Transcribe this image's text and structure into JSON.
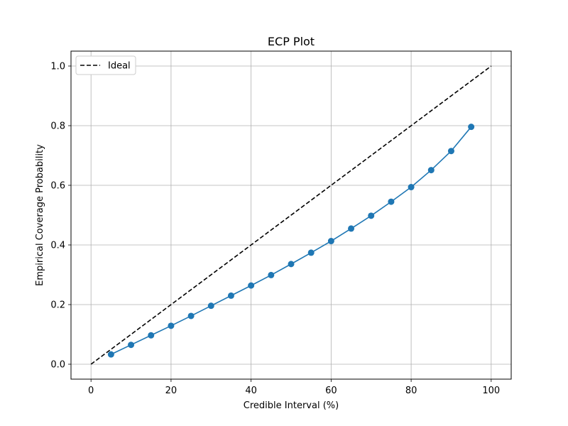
{
  "chart_data": {
    "type": "line",
    "title": "ECP Plot",
    "xlabel": "Credible Interval (%)",
    "ylabel": "Empirical Coverage Probability",
    "xlim": [
      -5,
      105
    ],
    "ylim": [
      -0.05,
      1.05
    ],
    "xticks": [
      0,
      20,
      40,
      60,
      80,
      100
    ],
    "yticks": [
      0.0,
      0.2,
      0.4,
      0.6,
      0.8,
      1.0
    ],
    "xtick_labels": [
      "0",
      "20",
      "40",
      "60",
      "80",
      "100"
    ],
    "ytick_labels": [
      "0.0",
      "0.2",
      "0.4",
      "0.6",
      "0.8",
      "1.0"
    ],
    "grid": true,
    "legend_position": "top-left",
    "series": [
      {
        "name": "Ideal",
        "style": "dashed",
        "color": "#000000",
        "x": [
          0,
          100
        ],
        "y": [
          0.0,
          1.0
        ]
      },
      {
        "style": "solid-markers",
        "color": "#1f77b4",
        "x": [
          5,
          10,
          15,
          20,
          25,
          30,
          35,
          40,
          45,
          50,
          55,
          60,
          65,
          70,
          75,
          80,
          85,
          90,
          95
        ],
        "y": [
          0.033,
          0.065,
          0.097,
          0.129,
          0.162,
          0.196,
          0.23,
          0.264,
          0.299,
          0.336,
          0.374,
          0.413,
          0.455,
          0.498,
          0.545,
          0.594,
          0.651,
          0.715,
          0.796
        ]
      }
    ]
  }
}
